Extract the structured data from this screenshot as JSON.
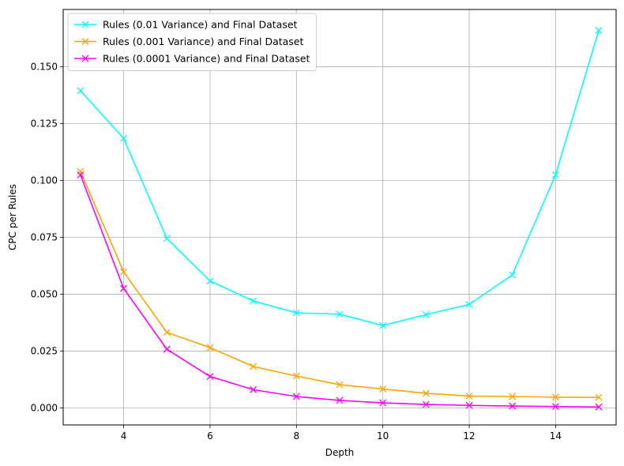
{
  "chart_data": {
    "type": "line",
    "xlabel": "Depth",
    "ylabel": "CPC per Rules",
    "xlim": [
      2.6,
      15.4
    ],
    "ylim": [
      -0.0075,
      0.1752
    ],
    "x_ticks": [
      4,
      6,
      8,
      10,
      12,
      14
    ],
    "y_ticks": [
      0.0,
      0.025,
      0.05,
      0.075,
      0.1,
      0.125,
      0.15
    ],
    "x_tick_labels": [
      "4",
      "6",
      "8",
      "10",
      "12",
      "14"
    ],
    "y_tick_labels": [
      "0.000",
      "0.025",
      "0.050",
      "0.075",
      "0.100",
      "0.125",
      "0.150"
    ],
    "grid": true,
    "legend_position": "top-left",
    "x": [
      3,
      4,
      5,
      6,
      7,
      8,
      9,
      10,
      11,
      12,
      13,
      14,
      15
    ],
    "series": [
      {
        "name": "Rules (0.01 Variance) and Final Dataset",
        "color": "#00ffff",
        "marker": "x",
        "values": [
          0.1395,
          0.1185,
          0.0745,
          0.0558,
          0.047,
          0.0418,
          0.0412,
          0.0362,
          0.041,
          0.0455,
          0.0585,
          0.1025,
          0.166
        ]
      },
      {
        "name": "Rules (0.001 Variance) and Final Dataset",
        "color": "#ffa500",
        "marker": "x",
        "values": [
          0.104,
          0.0598,
          0.0332,
          0.0265,
          0.0182,
          0.014,
          0.0102,
          0.0083,
          0.0064,
          0.0052,
          0.005,
          0.0047,
          0.0046
        ]
      },
      {
        "name": "Rules (0.0001 Variance) and Final Dataset",
        "color": "#ff00ff",
        "marker": "x",
        "values": [
          0.1025,
          0.0525,
          0.0258,
          0.0138,
          0.008,
          0.005,
          0.0033,
          0.0022,
          0.0015,
          0.0011,
          0.0008,
          0.0006,
          0.0004
        ]
      }
    ]
  }
}
